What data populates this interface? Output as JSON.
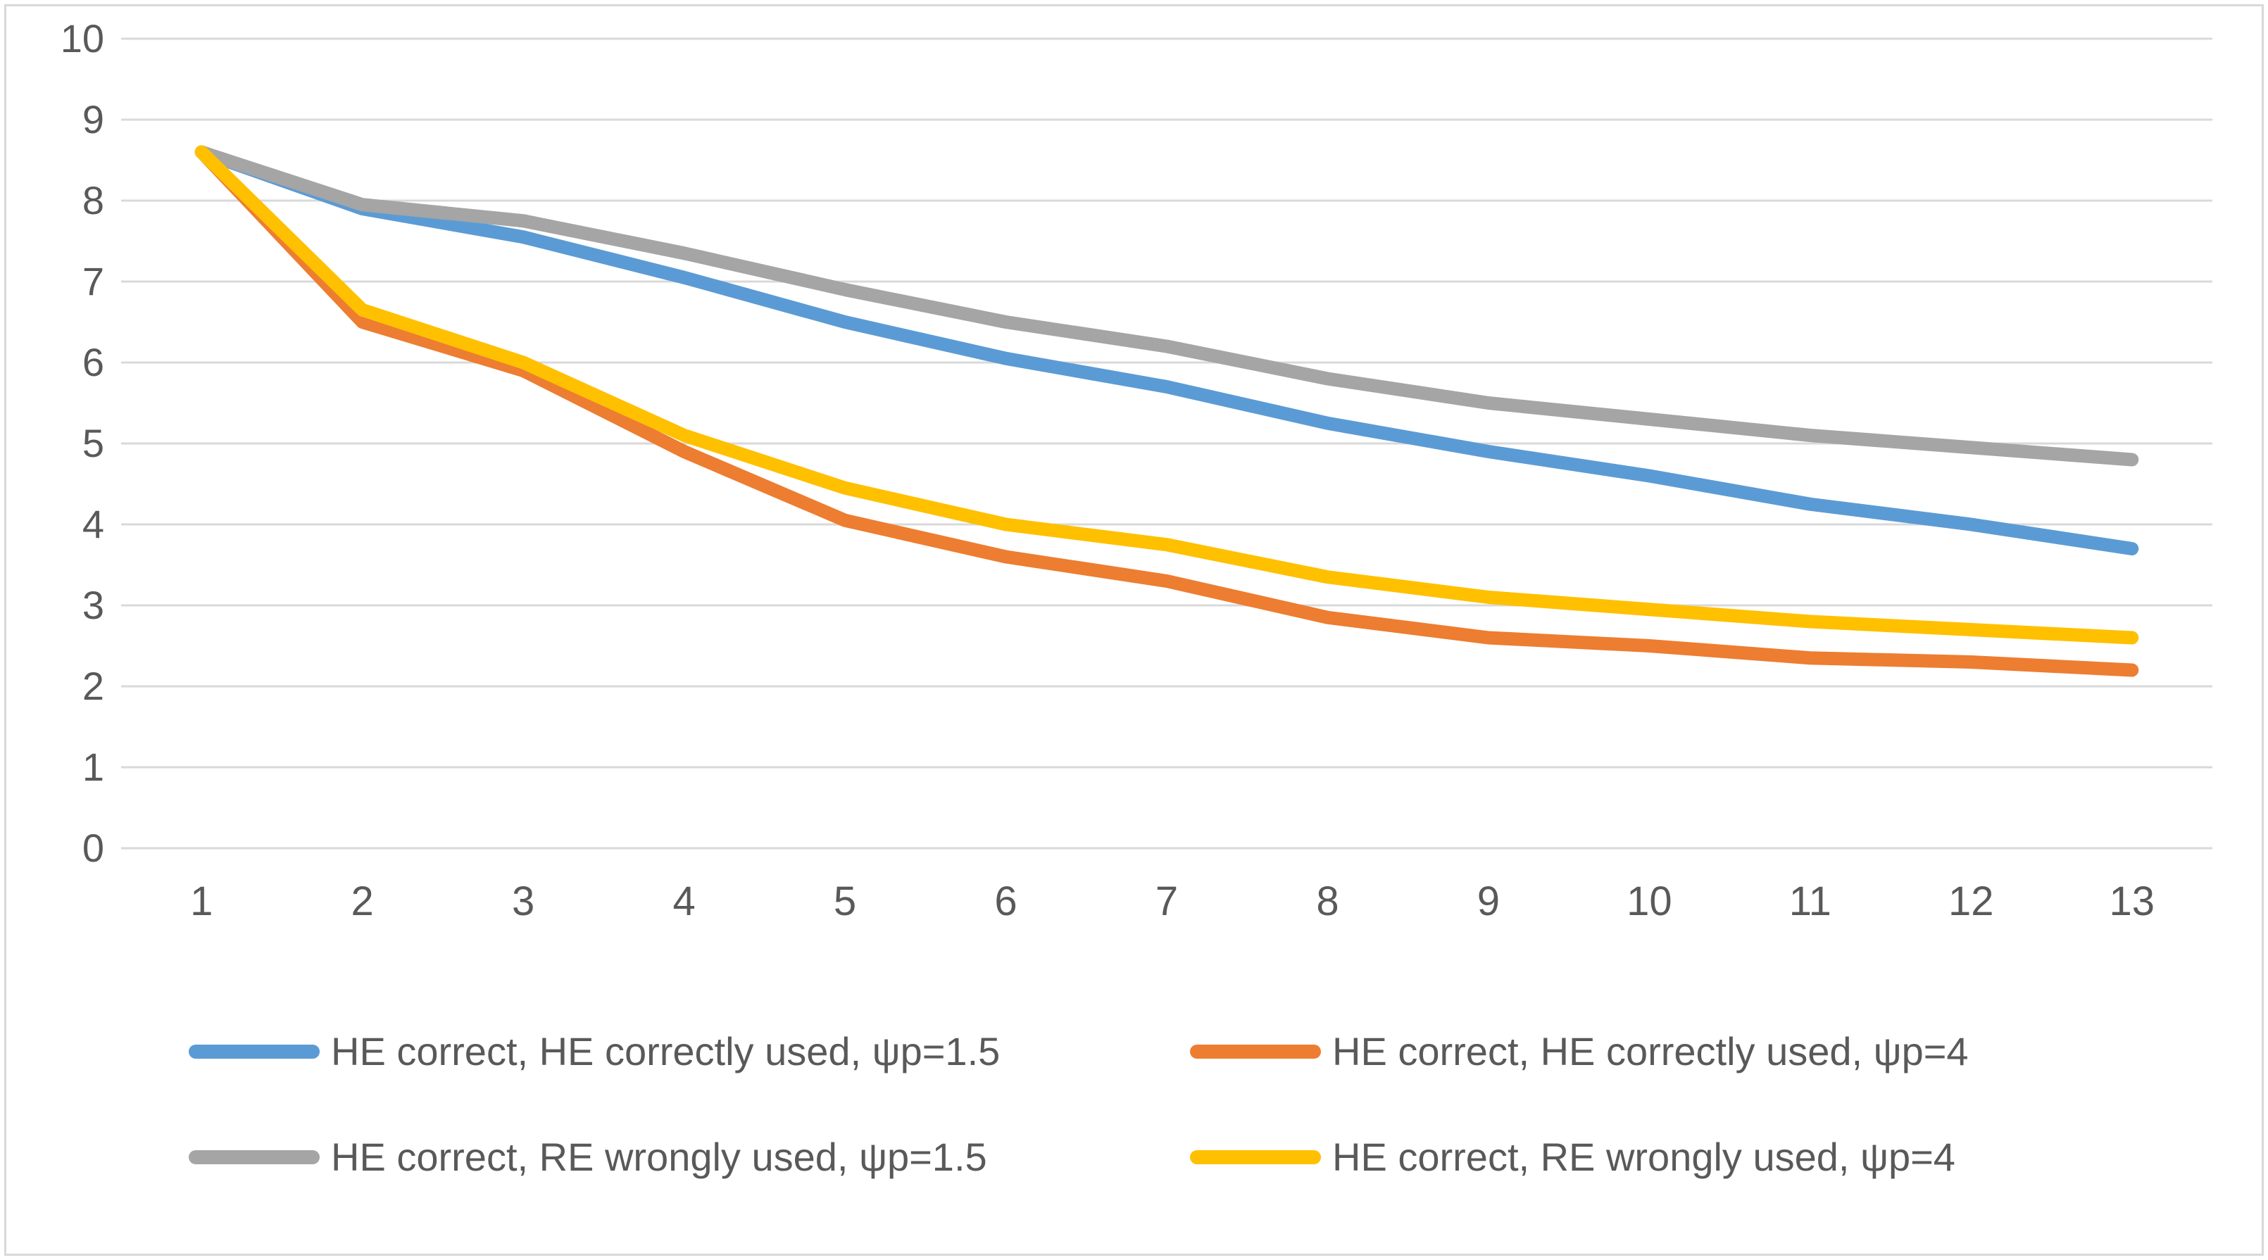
{
  "chart_data": {
    "type": "line",
    "title": "",
    "xlabel": "",
    "ylabel": "",
    "categories": [
      "1",
      "2",
      "3",
      "4",
      "5",
      "6",
      "7",
      "8",
      "9",
      "10",
      "11",
      "12",
      "13"
    ],
    "y_ticks": [
      "0",
      "1",
      "2",
      "3",
      "4",
      "5",
      "6",
      "7",
      "8",
      "9",
      "10"
    ],
    "ylim": [
      0,
      10
    ],
    "grid": "horizontal",
    "gridline_color": "#d9d9d9",
    "axis_text_color": "#595959",
    "background_color": "#ffffff",
    "border_color": "#d9d9d9",
    "legend_position": "bottom",
    "series": [
      {
        "name": "HE correct, HE correctly used, ψp=1.5",
        "color": "#5b9bd5",
        "values": [
          8.6,
          7.9,
          7.55,
          7.05,
          6.5,
          6.05,
          5.7,
          5.25,
          4.9,
          4.6,
          4.25,
          4.0,
          3.7
        ]
      },
      {
        "name": "HE correct, HE correctly used, ψp=4",
        "color": "#ed7d31",
        "values": [
          8.6,
          6.5,
          5.9,
          4.9,
          4.05,
          3.6,
          3.3,
          2.85,
          2.6,
          2.5,
          2.35,
          2.3,
          2.2
        ]
      },
      {
        "name": "HE correct, RE wrongly used, ψp=1.5",
        "color": "#a5a5a5",
        "values": [
          8.6,
          7.95,
          7.75,
          7.35,
          6.9,
          6.5,
          6.2,
          5.8,
          5.5,
          5.3,
          5.1,
          4.95,
          4.8
        ]
      },
      {
        "name": "HE correct, RE wrongly used, ψp=4",
        "color": "#ffc000",
        "values": [
          8.6,
          6.65,
          6.0,
          5.1,
          4.45,
          4.0,
          3.75,
          3.35,
          3.1,
          2.95,
          2.8,
          2.7,
          2.6
        ]
      }
    ]
  }
}
